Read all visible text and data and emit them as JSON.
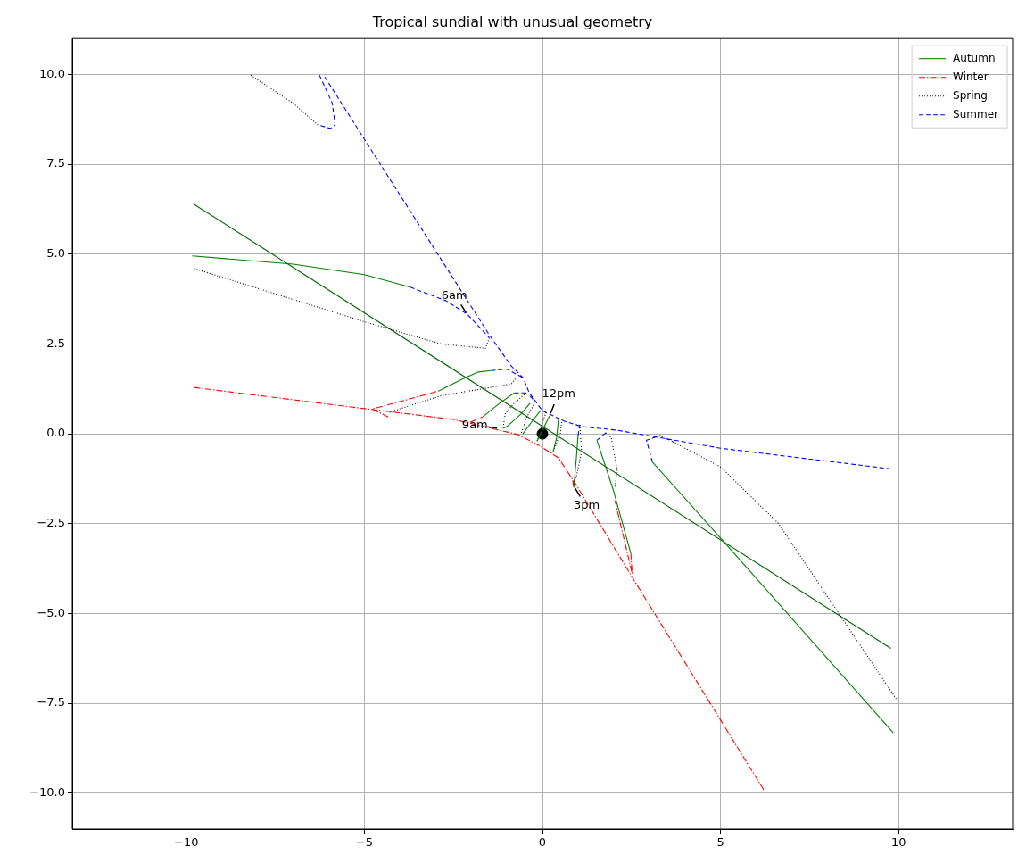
{
  "chart_data": {
    "type": "line",
    "title": "Tropical sundial with unusual geometry",
    "xlim": [
      -13.2,
      13.2
    ],
    "ylim": [
      -11,
      11
    ],
    "xticks": [
      {
        "value": -10,
        "label": "−10"
      },
      {
        "value": -5,
        "label": "−5"
      },
      0,
      5,
      10
    ],
    "yticks": [
      {
        "value": -10,
        "label": "−10.0"
      },
      {
        "value": -7.5,
        "label": "−7.5"
      },
      {
        "value": -5,
        "label": "−5.0"
      },
      {
        "value": -2.5,
        "label": "−2.5"
      },
      {
        "value": 0,
        "label": "0.0"
      },
      2.5,
      {
        "value": 5,
        "label": "5.0"
      },
      7.5,
      {
        "value": 10,
        "label": "10.0"
      }
    ],
    "grid": true,
    "legend": "top right",
    "annotations": [
      {
        "text": "6am",
        "x": -2.1,
        "y": 3.3
      },
      {
        "text": "9am",
        "x": -1.2,
        "y": 0.15
      },
      {
        "text": "12pm",
        "x": 0.2,
        "y": 0.5
      },
      {
        "text": "3pm",
        "x": 0.88,
        "y": -1.45
      }
    ],
    "series": [
      {
        "name": "Autumn",
        "color": "#008000",
        "line_style": "solid",
        "x": [
          -9.83,
          -7,
          -5,
          -3.71,
          null,
          -2.92,
          -2.3,
          -1.8,
          -1.44,
          null,
          -1.68,
          -1.2,
          -0.79,
          null,
          -1.0,
          -0.6,
          -0.35,
          null,
          -0.55,
          -0.25,
          -0.05,
          null,
          -0.15,
          0.05,
          0.2,
          null,
          0.3,
          0.4,
          0.45,
          null,
          0.88,
          0.95,
          1.0,
          null,
          1.53,
          2.0,
          2.48,
          null,
          3.09,
          5,
          9.85
        ],
        "values": [
          4.95,
          4.72,
          4.43,
          4.08,
          null,
          1.19,
          1.5,
          1.72,
          1.76,
          null,
          0.47,
          0.85,
          1.14,
          null,
          0.2,
          0.55,
          0.85,
          null,
          0.0,
          0.4,
          0.65,
          null,
          -0.2,
          0.2,
          0.5,
          null,
          -0.5,
          -0.1,
          0.4,
          null,
          -1.5,
          -0.7,
          -0.05,
          null,
          -0.18,
          -1.6,
          -3.32,
          null,
          -0.79,
          -2.9,
          -8.32
        ]
      },
      {
        "name": "Winter",
        "color": "#ff0000",
        "line_style": "dashdot",
        "x": [
          -9.78,
          -5.32,
          -2.5,
          -0.69,
          -0.05,
          0.45,
          0.94,
          2.52,
          6.24,
          null,
          -4.33,
          -4.78,
          -3.8,
          -2.92,
          null,
          -2.03,
          -1.68,
          null,
          -1.11,
          -1.0,
          null,
          0.85,
          0.88,
          null,
          2.48,
          2.52,
          2.03
        ],
        "values": [
          1.29,
          0.74,
          0.4,
          -0.02,
          -0.35,
          -0.67,
          -1.41,
          -3.99,
          -9.95,
          null,
          0.47,
          0.69,
          0.95,
          1.19,
          null,
          0.32,
          0.47,
          null,
          0.15,
          0.2,
          null,
          -1.3,
          -1.5,
          null,
          -3.32,
          -3.89,
          -1.83
        ]
      },
      {
        "name": "Spring",
        "color": "#000000",
        "line_style": "dotted",
        "x": [
          -8.19,
          -7,
          -6.31,
          null,
          -9.78,
          -5,
          -2.85,
          -1.6,
          -1.49,
          null,
          -4.3,
          -2.85,
          -0.87,
          -0.74,
          null,
          -0.45,
          -0.8,
          -1.04,
          -1.11,
          null,
          -0.25,
          -0.45,
          -0.6,
          null,
          0.1,
          0.0,
          -0.15,
          null,
          0.55,
          0.5,
          0.3,
          null,
          1.05,
          1.1,
          0.95,
          0.88,
          null,
          1.78,
          1.93,
          2.1,
          2.03,
          null,
          3.66,
          5.0,
          6.63,
          9.98
        ],
        "values": [
          9.98,
          9.2,
          8.6,
          null,
          4.6,
          3.12,
          2.5,
          2.38,
          2.67,
          null,
          0.6,
          1.06,
          1.39,
          1.56,
          null,
          1.14,
          0.85,
          0.57,
          0.15,
          null,
          0.8,
          0.45,
          0.0,
          null,
          0.6,
          0.3,
          -0.2,
          null,
          0.4,
          0.0,
          -0.5,
          null,
          0.25,
          -0.5,
          -1.2,
          -1.3,
          null,
          0.03,
          -0.1,
          -1.0,
          -1.5,
          null,
          -0.22,
          -0.92,
          -2.5,
          -7.45
        ]
      },
      {
        "name": "Summer",
        "color": "#0000ff",
        "line_style": "dashed",
        "x": [
          -6.26,
          -5.9,
          -5.82,
          -5.95,
          -6.31,
          null,
          -6.11,
          -5,
          -1.49,
          -0.87,
          -0.54,
          -0.37,
          0,
          0.62,
          1.11,
          2.1,
          5,
          9.73,
          null,
          -3.71,
          -2.7,
          -2.1,
          -1.49,
          null,
          -1.44,
          -1.0,
          -0.54,
          null,
          -0.79,
          -0.45,
          null,
          -0.35,
          -0.2,
          null,
          1.0,
          1.05,
          null,
          1.53,
          1.78,
          null,
          3.09,
          2.92,
          3.3,
          3.66
        ],
        "values": [
          9.98,
          9.2,
          8.6,
          8.5,
          8.6,
          null,
          9.93,
          8.2,
          2.75,
          1.88,
          1.56,
          1.14,
          0.64,
          0.35,
          0.2,
          0.1,
          -0.4,
          -0.97,
          null,
          4.08,
          3.7,
          3.32,
          2.67,
          null,
          1.76,
          1.8,
          1.56,
          null,
          1.14,
          1.14,
          null,
          1.05,
          0.9,
          null,
          -0.05,
          0.25,
          null,
          -0.18,
          0.03,
          null,
          -0.79,
          -0.18,
          -0.05,
          -0.22
        ]
      },
      {
        "color": "#006400",
        "line_style": "solid",
        "x": [
          -9.8,
          9.78
        ],
        "values": [
          6.4,
          -5.97
        ]
      },
      {
        "type": "scatter",
        "color": "#000000",
        "marker": "circle",
        "x": [
          0
        ],
        "values": [
          0
        ]
      }
    ]
  }
}
